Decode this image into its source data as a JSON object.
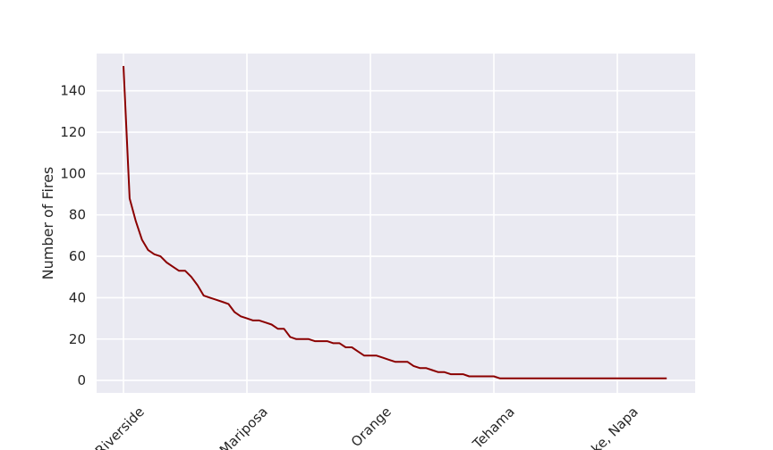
{
  "chart_data": {
    "type": "line",
    "title": "",
    "xlabel": "",
    "ylabel": "Number of Fires",
    "ylim": [
      -6,
      158
    ],
    "yticks": [
      0,
      20,
      40,
      60,
      80,
      100,
      120,
      140
    ],
    "xtick_labels": [
      {
        "index": 0,
        "label": "Riverside"
      },
      {
        "index": 20,
        "label": "Mariposa"
      },
      {
        "index": 40,
        "label": "Orange"
      },
      {
        "index": 60,
        "label": "Tehama"
      },
      {
        "index": 80,
        "label": "Lake, Napa"
      }
    ],
    "grid": true,
    "line_color": "#8b0000",
    "background_color": "#eaeaf2",
    "series": [
      {
        "values": [
          152,
          88,
          77,
          68,
          63,
          61,
          60,
          57,
          55,
          53,
          53,
          50,
          46,
          41,
          40,
          39,
          38,
          37,
          33,
          31,
          30,
          29,
          29,
          28,
          27,
          25,
          25,
          21,
          20,
          20,
          20,
          19,
          19,
          19,
          18,
          18,
          16,
          16,
          14,
          12,
          12,
          12,
          11,
          10,
          9,
          9,
          9,
          7,
          6,
          6,
          5,
          4,
          4,
          3,
          3,
          3,
          2,
          2,
          2,
          2,
          2,
          1,
          1,
          1,
          1,
          1,
          1,
          1,
          1,
          1,
          1,
          1,
          1,
          1,
          1,
          1,
          1,
          1,
          1,
          1,
          1,
          1,
          1,
          1,
          1,
          1,
          1,
          1,
          1
        ]
      }
    ]
  }
}
